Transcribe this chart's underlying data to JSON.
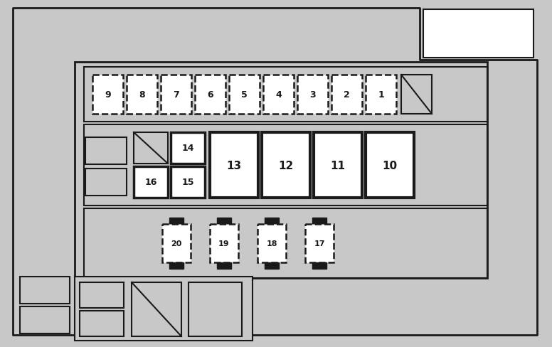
{
  "fig_width": 7.76,
  "fig_height": 4.89,
  "bg_color": "#c8c8c8",
  "white": "#ffffff",
  "dark": "#1a1a1a",
  "lgray": "#c8c8c8",
  "mgray": "#b8b8b8"
}
